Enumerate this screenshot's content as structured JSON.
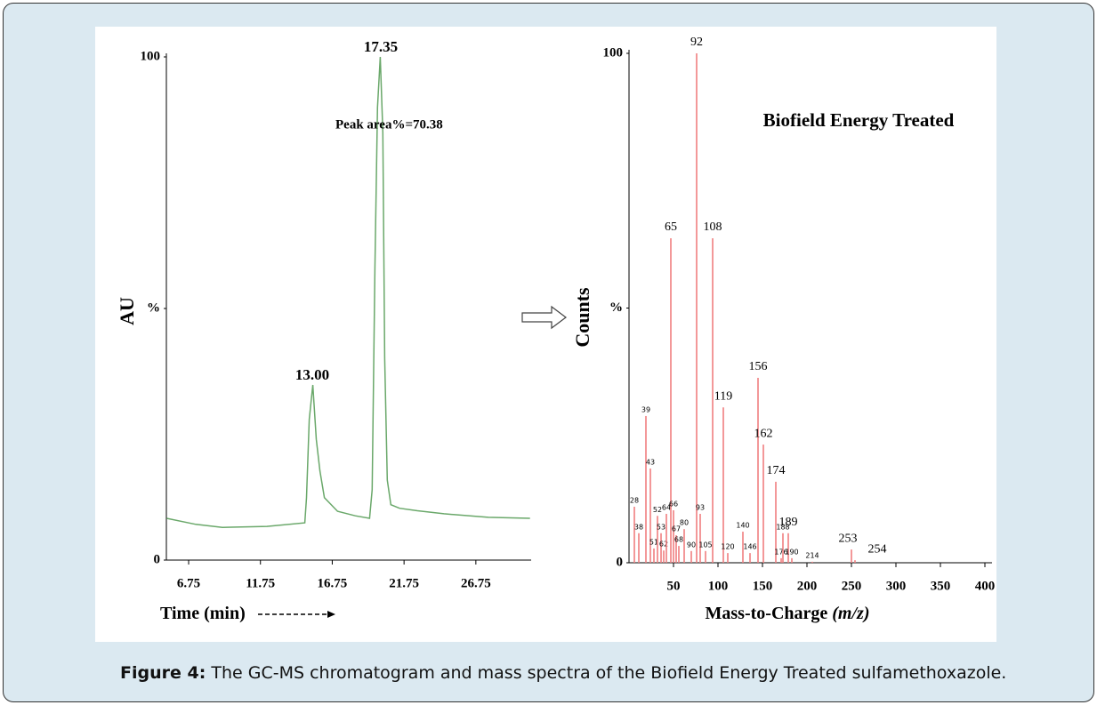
{
  "chart_data": [
    {
      "type": "line",
      "y_label": "AU",
      "x_label": "Time (min)",
      "annotations": [
        "17.35",
        "13.00",
        "Peak area%=70.38"
      ],
      "color": "#6aa86a",
      "x": [
        5.21,
        7.25,
        9.1,
        12.2,
        14.84,
        14.96,
        15.15,
        15.4,
        15.64,
        15.89,
        16.2,
        17.12,
        18.36,
        19.35,
        19.53,
        19.72,
        19.9,
        20.09,
        20.27,
        20.4,
        20.58,
        20.83,
        21.44,
        22.68,
        24.53,
        27.62,
        30.52
      ],
      "values": [
        8.3,
        7.1,
        6.5,
        6.7,
        7.4,
        12.4,
        28,
        34.8,
        24,
        17.7,
        12.4,
        9.7,
        8.8,
        8.3,
        14,
        58,
        90,
        100,
        85,
        40,
        15.9,
        11,
        10.3,
        9.8,
        9.2,
        8.5,
        8.3
      ],
      "xlim": [
        5.2,
        30.6
      ],
      "xticks": [
        6.75,
        11.75,
        16.75,
        21.75,
        26.75
      ],
      "ylim": [
        0,
        100
      ],
      "yticks": [
        0,
        {
          "value": 50,
          "label": "%"
        },
        100
      ]
    },
    {
      "type": "bar",
      "title": "Biofield Energy Treated",
      "y_label": "Counts",
      "x_label": "Mass-to-Charge",
      "x_label_unit": "(m/z)",
      "color": "#f07f80",
      "x": [
        6,
        11,
        19,
        24,
        28,
        32,
        36,
        39,
        42,
        47,
        50,
        53,
        56,
        62,
        70,
        76,
        80,
        86,
        94,
        106,
        111,
        128,
        136,
        145,
        151,
        165,
        171,
        173,
        179,
        183,
        206,
        250,
        254
      ],
      "values": [
        11,
        5.8,
        28.8,
        18.5,
        2.8,
        9.2,
        5.8,
        2.4,
        9.6,
        63.7,
        10.3,
        5.4,
        3.3,
        6.6,
        2.3,
        100,
        9.6,
        2.3,
        63.7,
        30.5,
        1.9,
        6.1,
        1.9,
        36.3,
        23.2,
        15.9,
        0.9,
        5.8,
        5.8,
        0.9,
        0.2,
        2.6,
        0.5
      ],
      "labels": [
        "28",
        "38",
        "39",
        "43",
        "51",
        "52",
        "53",
        "62",
        "64",
        "65",
        "66",
        "67",
        "68",
        "80",
        "90",
        "92",
        "93",
        "105",
        "108",
        "119",
        "120",
        "140",
        "146",
        "156",
        "162",
        "174",
        "176",
        "188",
        "189",
        "190",
        "214",
        "253",
        "254"
      ],
      "xlim": [
        0,
        408
      ],
      "xticks": [
        50,
        100,
        150,
        200,
        250,
        300,
        350,
        400
      ],
      "ylim": [
        0,
        100
      ],
      "yticks": [
        0,
        {
          "value": 50,
          "label": "%"
        },
        100
      ]
    }
  ],
  "caption": {
    "label": "Figure 4:",
    "text": "The GC-MS chromatogram and mass spectra of the Biofield Energy Treated sulfamethoxazole."
  }
}
